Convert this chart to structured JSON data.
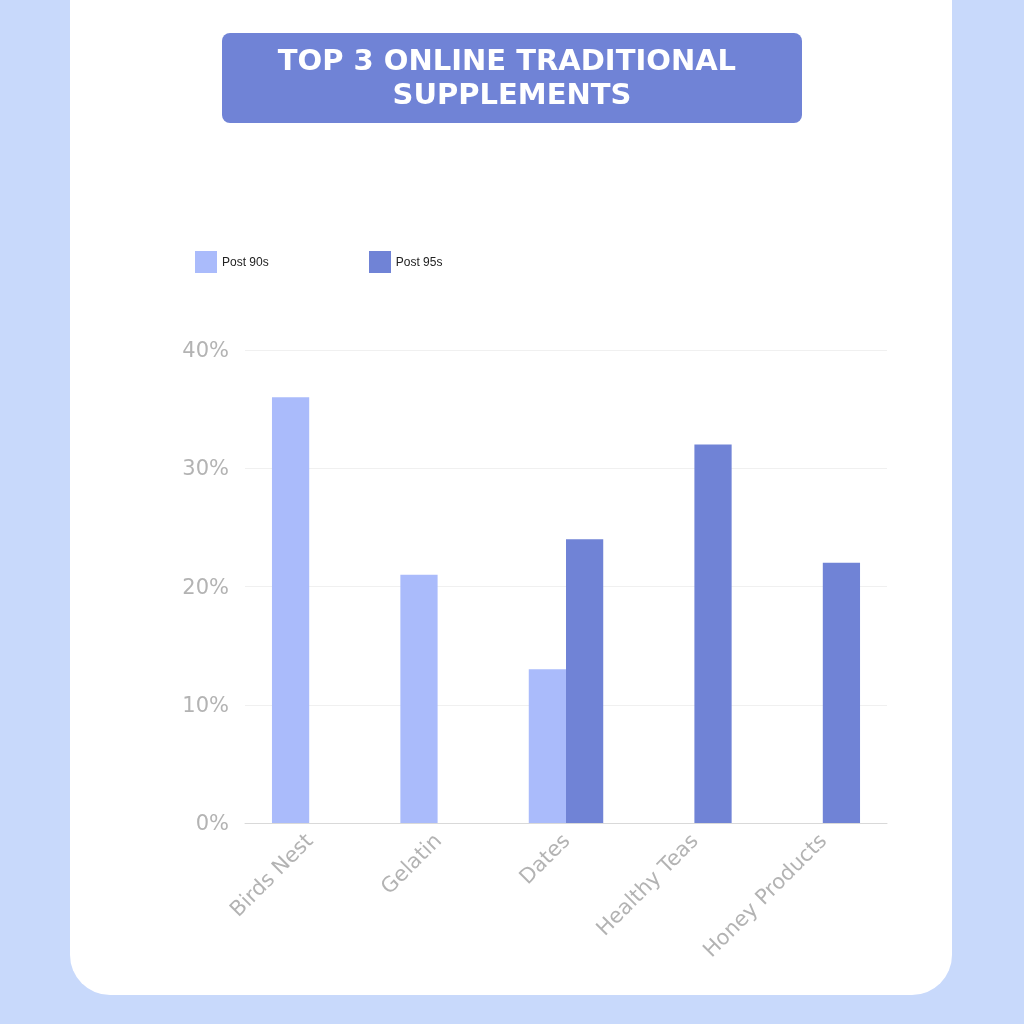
{
  "chart_data": {
    "type": "bar",
    "title": "TOP 3 ONLINE TRADITIONAL SUPPLEMENTS",
    "categories": [
      "Birds Nest",
      "Gelatin",
      "Dates",
      "Healthy Teas",
      "Honey Products"
    ],
    "series": [
      {
        "name": "Post 90s",
        "color": "#aabbfb",
        "values": [
          36,
          21,
          13,
          null,
          null
        ]
      },
      {
        "name": "Post 95s",
        "color": "#7083d6",
        "values": [
          null,
          null,
          24,
          32,
          22
        ]
      }
    ],
    "ylim": [
      0,
      40
    ],
    "yticks": [
      {
        "value": 0,
        "label": "0%"
      },
      {
        "value": 10,
        "label": "10%"
      },
      {
        "value": 20,
        "label": "20%"
      },
      {
        "value": 30,
        "label": "30%"
      },
      {
        "value": 40,
        "label": "40%"
      }
    ],
    "grid": "y",
    "legend": "top left"
  }
}
